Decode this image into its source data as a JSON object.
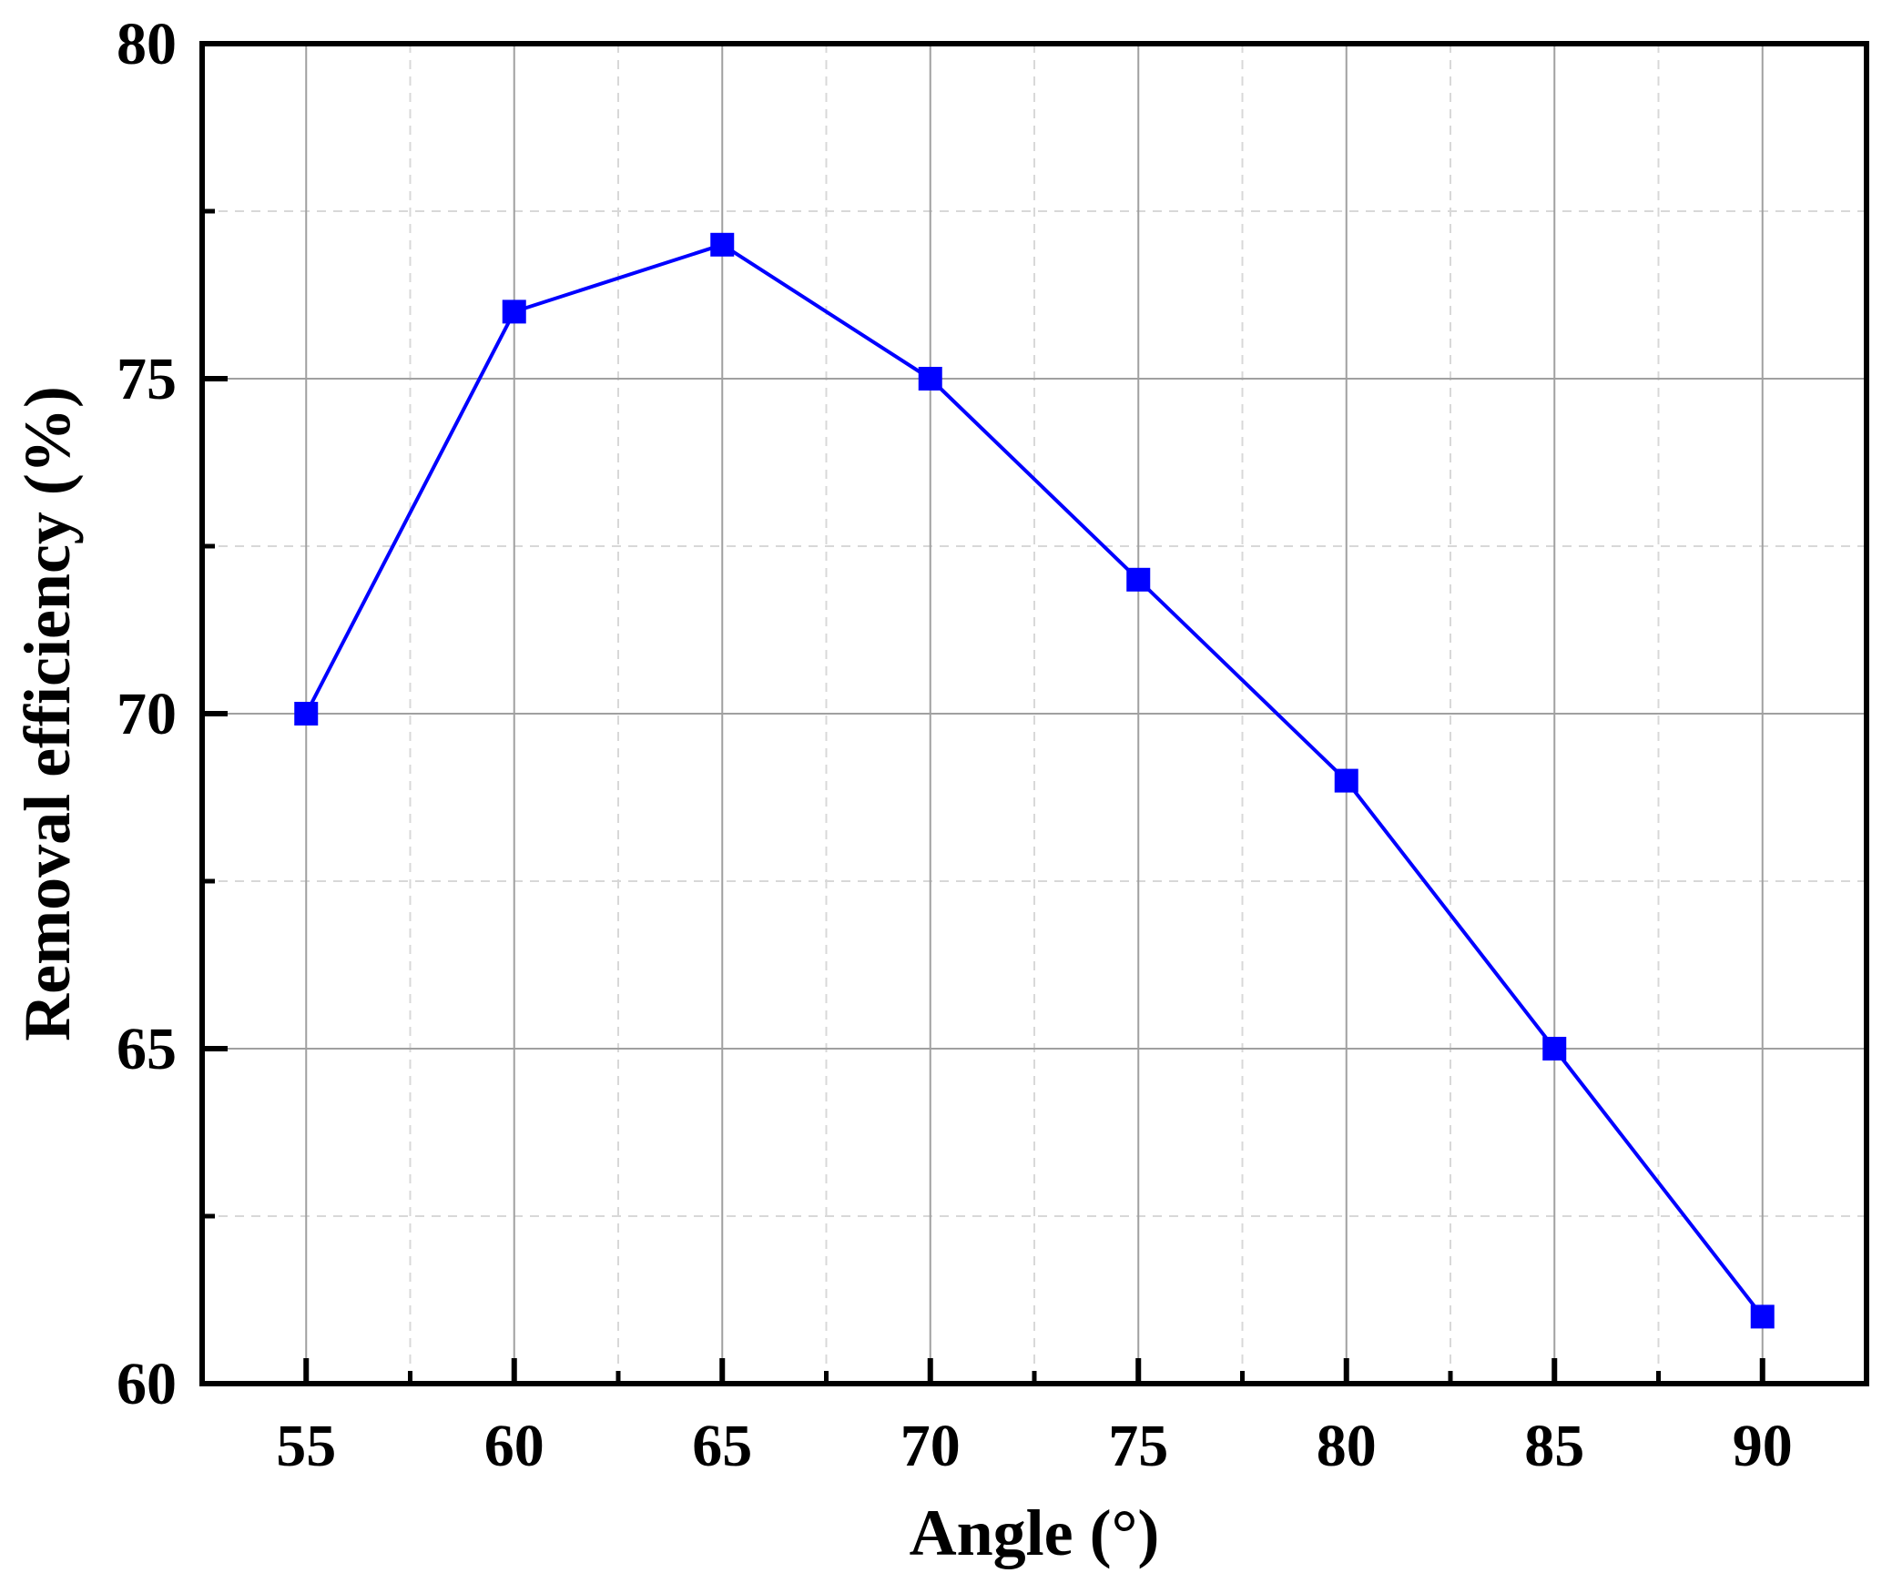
{
  "chart_data": {
    "type": "line",
    "title": "",
    "xlabel": "Angle (°)",
    "ylabel": "Removal efficiency (%)",
    "x": [
      55,
      60,
      65,
      70,
      75,
      80,
      85,
      90
    ],
    "series": [
      {
        "values": [
          70,
          76,
          77,
          75,
          72,
          69,
          65,
          61
        ],
        "color": "#0000ff",
        "marker": "square"
      }
    ],
    "xlim": [
      52.5,
      92.5
    ],
    "ylim": [
      60,
      80
    ],
    "x_ticks": [
      55,
      60,
      65,
      70,
      75,
      80,
      85,
      90
    ],
    "x_tick_labels": [
      "55",
      "60",
      "65",
      "70",
      "75",
      "80",
      "85",
      "90"
    ],
    "y_ticks": [
      60,
      65,
      70,
      75,
      80
    ],
    "y_tick_labels": [
      "60",
      "65",
      "70",
      "75",
      "80"
    ],
    "grid": true,
    "legend": "none",
    "colors": {
      "series": "#0000ff",
      "axes": "#000000",
      "major_grid": "#a0a0a0",
      "minor_grid": "#d8d8d8"
    }
  }
}
